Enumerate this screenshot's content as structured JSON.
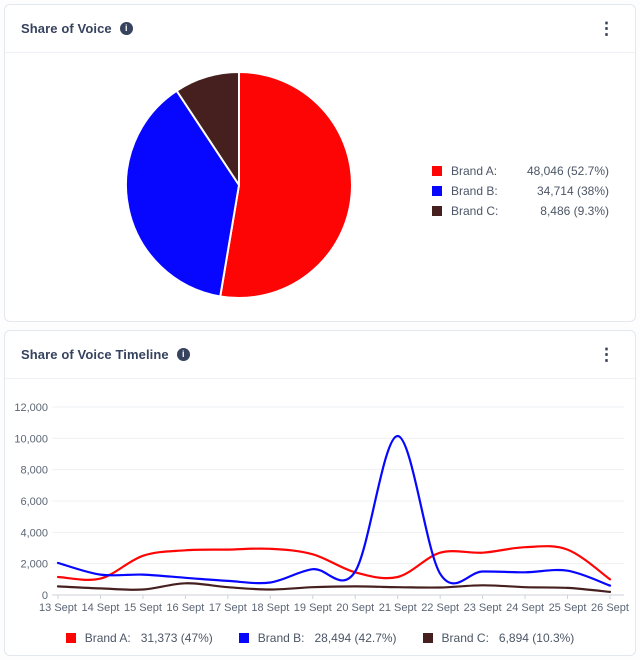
{
  "icons": {
    "info": "i",
    "kebab": "⋮"
  },
  "colors": {
    "brand_a": "#fe0505",
    "brand_b": "#0707ff",
    "brand_c": "#46201e",
    "grid": "#eef0f3",
    "axis_line": "#cdd2d9",
    "axis_text": "#5b6675",
    "title_text": "#36425e"
  },
  "pie_card": {
    "title": "Share of Voice"
  },
  "timeline_card": {
    "title": "Share of Voice Timeline"
  },
  "pie_legend": [
    {
      "label": "Brand A:",
      "value": "48,046 (52.7%)",
      "color": "#fe0505"
    },
    {
      "label": "Brand B:",
      "value": "34,714 (38%)",
      "color": "#0707ff"
    },
    {
      "label": "Brand C:",
      "value": "8,486 (9.3%)",
      "color": "#46201e"
    }
  ],
  "timeline_legend": [
    {
      "label": "Brand A:",
      "value": "31,373 (47%)",
      "color": "#fe0505"
    },
    {
      "label": "Brand B:",
      "value": "28,494 (42.7%)",
      "color": "#0707ff"
    },
    {
      "label": "Brand C:",
      "value": "6,894 (10.3%)",
      "color": "#46201e"
    }
  ],
  "chart_data": [
    {
      "type": "pie",
      "title": "Share of Voice",
      "labels": [
        "Brand A",
        "Brand B",
        "Brand C"
      ],
      "values": [
        48046,
        34714,
        8486
      ],
      "percentages": [
        52.7,
        38,
        9.3
      ],
      "colors": [
        "#fe0505",
        "#0707ff",
        "#46201e"
      ],
      "start_angle_deg": 0,
      "clockwise": true,
      "legend_position": "right"
    },
    {
      "type": "line",
      "title": "Share of Voice Timeline",
      "x_labels": [
        "13 Sept",
        "14 Sept",
        "15 Sept",
        "16 Sept",
        "17 Sept",
        "18 Sept",
        "19 Sept",
        "20 Sept",
        "21 Sept",
        "22 Sept",
        "23 Sept",
        "24 Sept",
        "25 Sept",
        "26 Sept"
      ],
      "ylim": [
        0,
        12000
      ],
      "ytick_step": 2000,
      "grid": true,
      "legend_position": "bottom",
      "series": [
        {
          "name": "Brand A",
          "total_display": "31,373 (47%)",
          "color": "#fe0505",
          "values": [
            1150,
            1050,
            2500,
            2850,
            2900,
            2950,
            2600,
            1450,
            1150,
            2700,
            2700,
            3050,
            2900,
            1000
          ]
        },
        {
          "name": "Brand B",
          "total_display": "28,494 (42.7%)",
          "color": "#0707ff",
          "values": [
            2050,
            1300,
            1300,
            1100,
            900,
            800,
            1650,
            1500,
            10150,
            1350,
            1500,
            1450,
            1550,
            600
          ]
        },
        {
          "name": "Brand C",
          "total_display": "6,894 (10.3%)",
          "color": "#46201e",
          "values": [
            550,
            420,
            350,
            750,
            500,
            350,
            500,
            550,
            500,
            480,
            620,
            500,
            450,
            200
          ]
        }
      ]
    }
  ]
}
